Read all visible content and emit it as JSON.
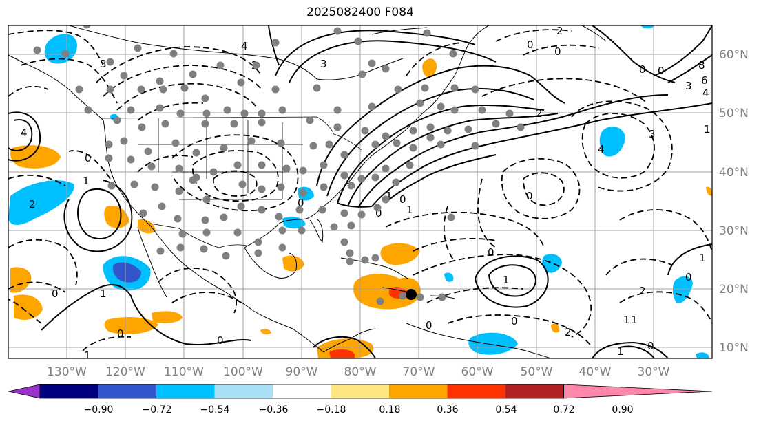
{
  "title": "2025082400 F084",
  "map": {
    "lon_range": [
      -138,
      -18
    ],
    "lat_range": [
      8,
      65
    ],
    "lat_ticks": [
      "10°N",
      "20°N",
      "30°N",
      "40°N",
      "50°N",
      "60°N"
    ],
    "lon_ticks": [
      "130°W",
      "120°W",
      "110°W",
      "100°W",
      "90°W",
      "80°W",
      "70°W",
      "60°W",
      "50°W",
      "40°W",
      "30°W"
    ],
    "contour_labels": [
      "0",
      "1",
      "2",
      "3",
      "4",
      "6",
      "8"
    ],
    "gridlines": true
  },
  "colorbar": {
    "labels": [
      "−0.90",
      "−0.72",
      "−0.54",
      "−0.36",
      "−0.18",
      "0.18",
      "0.36",
      "0.54",
      "0.72",
      "0.90"
    ],
    "colors": [
      "#9933cc",
      "#000080",
      "#3355cc",
      "#00bfff",
      "#aadff8",
      "#ffffff",
      "#ffe680",
      "#ffa500",
      "#ff3300",
      "#b22222",
      "#ff88aa"
    ]
  },
  "markers": {
    "station_color": "#808080",
    "highlight_color": "#000000"
  }
}
